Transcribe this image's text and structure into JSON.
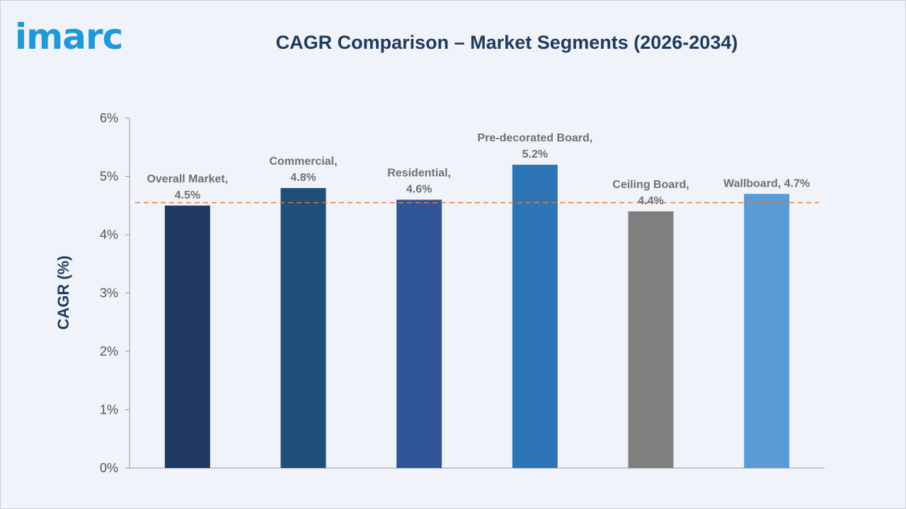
{
  "brand": {
    "logo_text": "imarc"
  },
  "colors": {
    "background": "#f0f3f9",
    "title": "#1e3a5f",
    "logo": "#1f9ad6",
    "reference_line": "#e07b39"
  },
  "chart_data": {
    "type": "bar",
    "title": "CAGR Comparison – Market Segments (2026-2034)",
    "xlabel": "",
    "ylabel": "CAGR (%)",
    "ylim": [
      0,
      6
    ],
    "yticks": [
      0,
      1,
      2,
      3,
      4,
      5,
      6
    ],
    "ytick_labels": [
      "0%",
      "1%",
      "2%",
      "3%",
      "4%",
      "5%",
      "6%"
    ],
    "grid": false,
    "legend": "none",
    "categories": [
      "Overall Market",
      "Commercial",
      "Residential",
      "Pre-decorated Board",
      "Ceiling Board",
      "Wallboard"
    ],
    "values": [
      4.5,
      4.8,
      4.6,
      5.2,
      4.4,
      4.7
    ],
    "data_labels": [
      [
        "Overall Market,",
        "4.5%"
      ],
      [
        "Commercial,",
        "4.8%"
      ],
      [
        "Residential,",
        "4.6%"
      ],
      [
        "Pre-decorated Board,",
        "5.2%"
      ],
      [
        "Ceiling Board,",
        "4.4%"
      ],
      [
        "Wallboard, 4.7%"
      ]
    ],
    "bar_colors": [
      "#1f3864",
      "#1f4e79",
      "#2f5597",
      "#2e75b6",
      "#7f7f7f",
      "#5b9bd5"
    ],
    "reference_line": {
      "value": 4.55,
      "style": "dashed"
    }
  }
}
